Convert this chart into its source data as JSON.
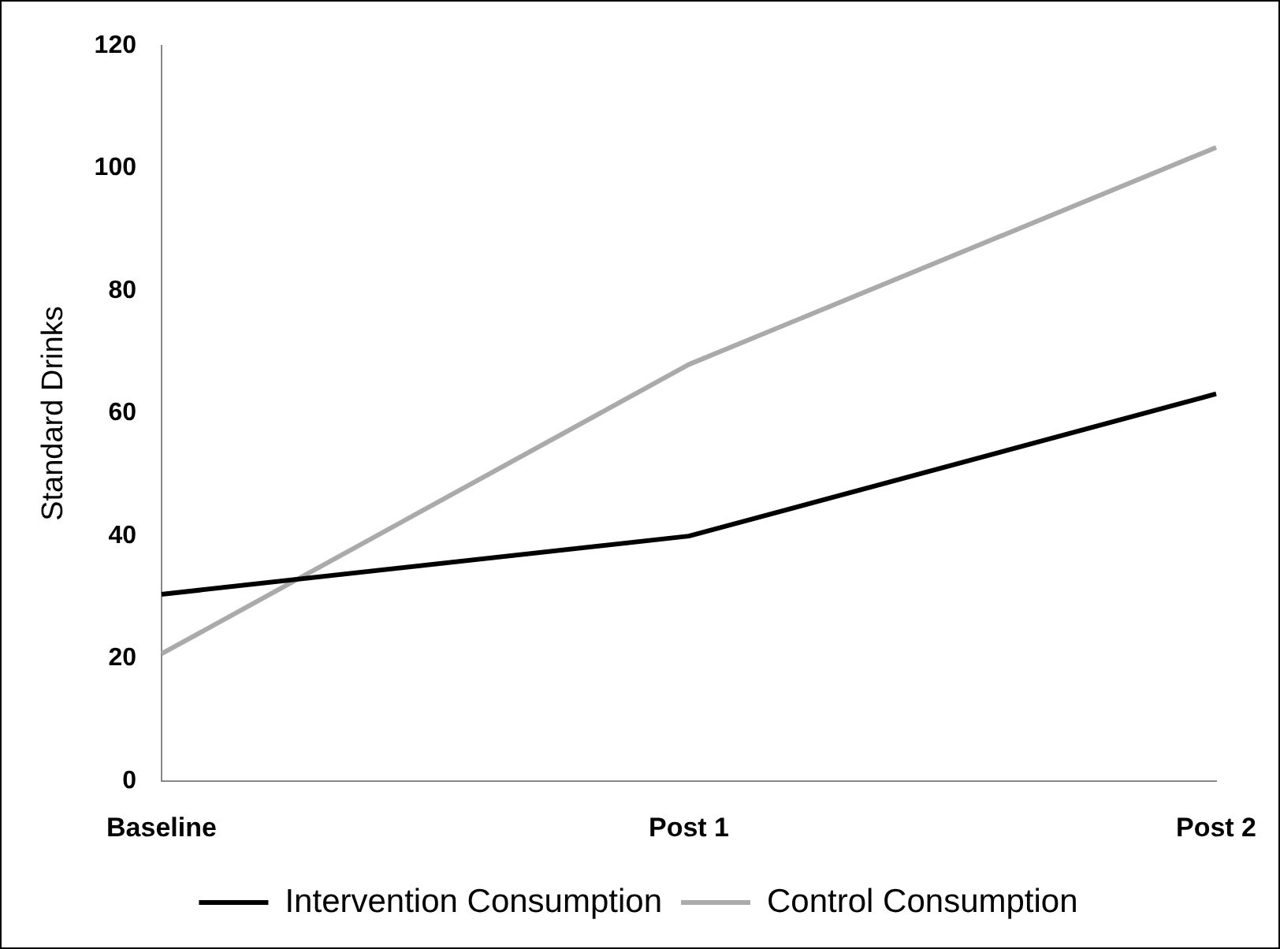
{
  "chart_data": {
    "type": "line",
    "ylabel": "Standard Drinks",
    "categories": [
      "Baseline",
      "Post 1",
      "Post 2"
    ],
    "series": [
      {
        "name": "Intervention Consumption",
        "color": "#000000",
        "values": [
          30.5,
          40,
          63.2
        ]
      },
      {
        "name": "Control Consumption",
        "color": "#aaaaaa",
        "values": [
          20.8,
          68,
          103.4
        ]
      }
    ],
    "ylim": [
      0,
      120
    ],
    "yticks": [
      0,
      20,
      40,
      60,
      80,
      100,
      120
    ],
    "grid": false,
    "legend": "bottom",
    "marker": "none",
    "line_style": "solid"
  }
}
